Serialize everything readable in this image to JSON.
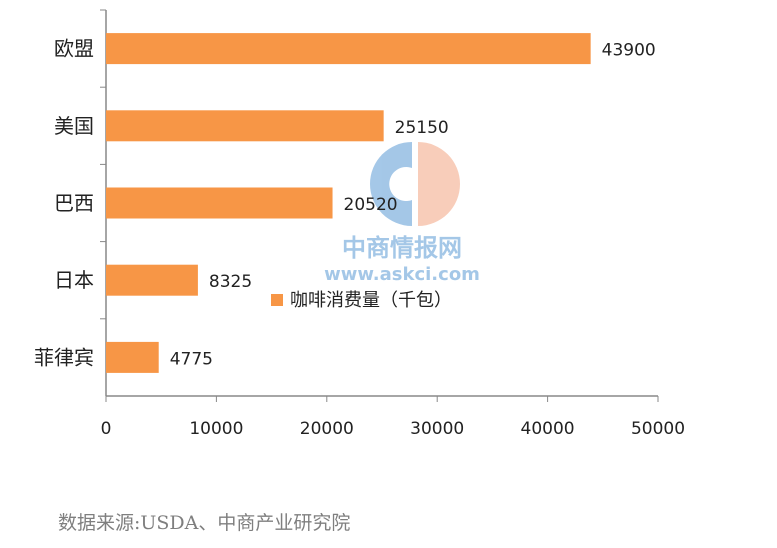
{
  "chart_data": {
    "type": "bar",
    "orientation": "horizontal",
    "categories": [
      "欧盟",
      "美国",
      "巴西",
      "日本",
      "菲律宾"
    ],
    "values": [
      43900,
      25150,
      20520,
      8325,
      4775
    ],
    "series": [
      {
        "name": "咖啡消费量（千包）",
        "values": [
          43900,
          25150,
          20520,
          8325,
          4775
        ]
      }
    ],
    "xlim": [
      0,
      50000
    ],
    "xticks": [
      "0",
      "10000",
      "20000",
      "30000",
      "40000",
      "50000"
    ],
    "bar_color": "#F79646",
    "grid": false,
    "legend_position": "inside-right"
  },
  "watermark": {
    "brand": "中商情报网",
    "url": "www.askci.com"
  },
  "source": "数据来源:USDA、中商产业研究院"
}
